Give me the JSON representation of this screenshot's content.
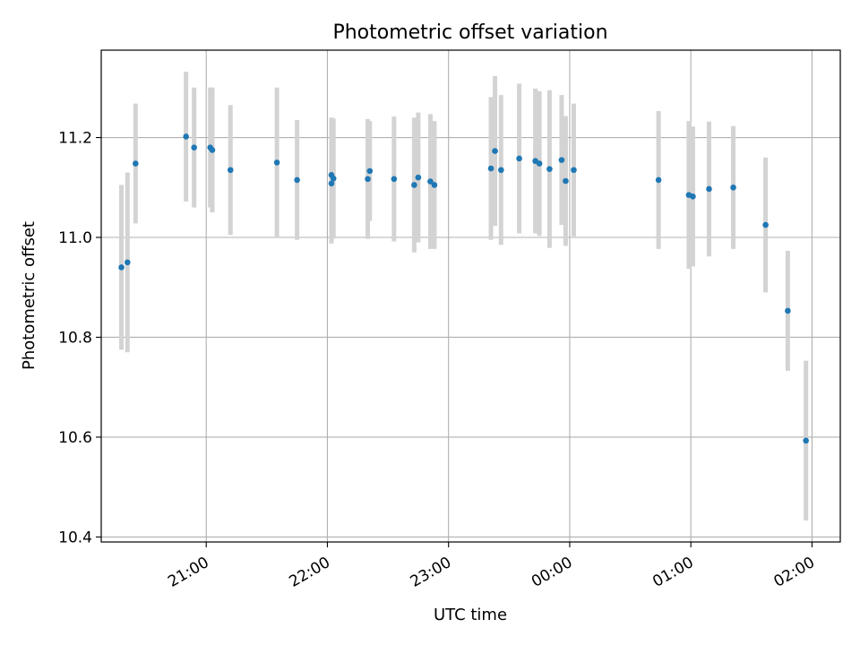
{
  "chart_data": {
    "type": "scatter",
    "title": "Photometric offset variation",
    "xlabel": "UTC time",
    "ylabel": "Photometric offset",
    "x_axis": {
      "ticks": [
        "21:00",
        "22:00",
        "23:00",
        "00:00",
        "01:00",
        "02:00"
      ],
      "tick_label_rotation": 30,
      "range": [
        "20:08",
        "02:14"
      ]
    },
    "y_axis": {
      "ticks": [
        "10.4",
        "10.6",
        "10.8",
        "11.0",
        "11.2"
      ],
      "range": [
        10.39,
        11.375
      ]
    },
    "grid": true,
    "colors": {
      "points": "#1f77b4",
      "errorbars": "#d3d3d3",
      "grid": "#b0b0b0",
      "axes": "#000000"
    },
    "points": [
      {
        "x": "20:18",
        "y": 10.94,
        "yerr": 0.165
      },
      {
        "x": "20:21",
        "y": 10.95,
        "yerr": 0.18
      },
      {
        "x": "20:25",
        "y": 11.148,
        "yerr": 0.12
      },
      {
        "x": "20:50",
        "y": 11.202,
        "yerr": 0.13
      },
      {
        "x": "20:54",
        "y": 11.18,
        "yerr": 0.12
      },
      {
        "x": "21:02",
        "y": 11.18,
        "yerr": 0.12
      },
      {
        "x": "21:03",
        "y": 11.175,
        "yerr": 0.125
      },
      {
        "x": "21:12",
        "y": 11.135,
        "yerr": 0.13
      },
      {
        "x": "21:35",
        "y": 11.15,
        "yerr": 0.15
      },
      {
        "x": "21:45",
        "y": 11.115,
        "yerr": 0.12
      },
      {
        "x": "22:02",
        "y": 11.125,
        "yerr": 0.115
      },
      {
        "x": "22:02",
        "y": 11.108,
        "yerr": 0.12
      },
      {
        "x": "22:03",
        "y": 11.118,
        "yerr": 0.12
      },
      {
        "x": "22:20",
        "y": 11.117,
        "yerr": 0.12
      },
      {
        "x": "22:21",
        "y": 11.133,
        "yerr": 0.1
      },
      {
        "x": "22:33",
        "y": 11.117,
        "yerr": 0.125
      },
      {
        "x": "22:43",
        "y": 11.105,
        "yerr": 0.135
      },
      {
        "x": "22:45",
        "y": 11.12,
        "yerr": 0.13
      },
      {
        "x": "22:51",
        "y": 11.112,
        "yerr": 0.135
      },
      {
        "x": "22:53",
        "y": 11.105,
        "yerr": 0.128
      },
      {
        "x": "23:21",
        "y": 11.138,
        "yerr": 0.143
      },
      {
        "x": "23:23",
        "y": 11.173,
        "yerr": 0.15
      },
      {
        "x": "23:26",
        "y": 11.135,
        "yerr": 0.15
      },
      {
        "x": "23:35",
        "y": 11.158,
        "yerr": 0.15
      },
      {
        "x": "23:43",
        "y": 11.153,
        "yerr": 0.145
      },
      {
        "x": "23:45",
        "y": 11.148,
        "yerr": 0.145
      },
      {
        "x": "23:50",
        "y": 11.137,
        "yerr": 0.158
      },
      {
        "x": "23:56",
        "y": 11.155,
        "yerr": 0.13
      },
      {
        "x": "23:58",
        "y": 11.113,
        "yerr": 0.13
      },
      {
        "x": "00:02",
        "y": 11.135,
        "yerr": 0.133
      },
      {
        "x": "00:44",
        "y": 11.115,
        "yerr": 0.138
      },
      {
        "x": "00:59",
        "y": 11.085,
        "yerr": 0.148
      },
      {
        "x": "01:01",
        "y": 11.082,
        "yerr": 0.14
      },
      {
        "x": "01:09",
        "y": 11.097,
        "yerr": 0.135
      },
      {
        "x": "01:21",
        "y": 11.1,
        "yerr": 0.123
      },
      {
        "x": "01:37",
        "y": 11.025,
        "yerr": 0.135
      },
      {
        "x": "01:48",
        "y": 10.853,
        "yerr": 0.12
      },
      {
        "x": "01:57",
        "y": 10.593,
        "yerr": 0.16
      }
    ]
  }
}
